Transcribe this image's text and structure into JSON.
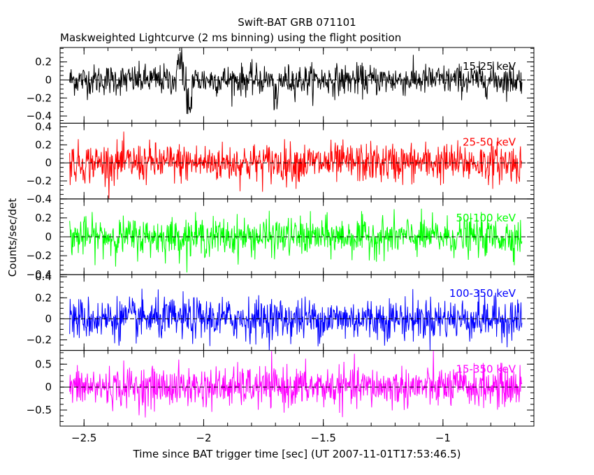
{
  "chart_data": {
    "type": "line",
    "title": "Swift-BAT GRB 071101",
    "subtitle": "Maskweighted Lightcurve (2 ms binning) using the flight position",
    "xlabel": "Time since BAT trigger time [sec] (UT 2007-11-01T17:53:46.5)",
    "ylabel": "Counts/sec/det",
    "xlim": [
      -2.6,
      -0.62
    ],
    "x_ticks": [
      -2.5,
      -2,
      -1.5,
      -1
    ],
    "x_tick_labels": [
      "−2.5",
      "−2",
      "−1.5",
      "−1"
    ],
    "x_data_range": [
      -2.56,
      -0.67
    ],
    "bin_width": 0.002,
    "panels": [
      {
        "name": "15-25 keV",
        "color": "#000000",
        "ylim": [
          -0.48,
          0.36
        ],
        "y_ticks": [
          -0.4,
          -0.2,
          0,
          0.2
        ],
        "y_tick_labels": [
          "−0.4",
          "−0.2",
          "0",
          "0.2"
        ],
        "noise_sigma": 0.085,
        "spikes": [
          {
            "x": -2.1,
            "amp": 0.22
          },
          {
            "x": -2.06,
            "amp": -0.3
          },
          {
            "x": -1.7,
            "amp": -0.25
          }
        ]
      },
      {
        "name": "25-50 keV",
        "color": "#ff0000",
        "ylim": [
          -0.4,
          0.44
        ],
        "y_ticks": [
          -0.4,
          -0.2,
          0,
          0.2,
          0.4
        ],
        "y_tick_labels": [
          "−0.4",
          "−0.2",
          "0",
          "0.2",
          "0.4"
        ],
        "noise_sigma": 0.11,
        "spikes": []
      },
      {
        "name": "50-100 keV",
        "color": "#00ff00",
        "ylim": [
          -0.4,
          0.4
        ],
        "y_ticks": [
          -0.4,
          -0.2,
          0,
          0.2
        ],
        "y_tick_labels": [
          "−0.4",
          "−0.2",
          "0",
          "0.2"
        ],
        "noise_sigma": 0.1,
        "spikes": []
      },
      {
        "name": "100-350 keV",
        "color": "#0000ff",
        "ylim": [
          -0.3,
          0.42
        ],
        "y_ticks": [
          -0.2,
          0,
          0.2,
          0.4
        ],
        "y_tick_labels": [
          "−0.2",
          "0",
          "0.2",
          "0.4"
        ],
        "noise_sigma": 0.1,
        "spikes": []
      },
      {
        "name": "15-350 keV",
        "color": "#ff00ff",
        "ylim": [
          -0.85,
          0.8
        ],
        "y_ticks": [
          -0.5,
          0,
          0.5
        ],
        "y_tick_labels": [
          "−0.5",
          "0",
          "0.5"
        ],
        "noise_sigma": 0.22,
        "spikes": []
      }
    ],
    "grid": false,
    "legend": "panel labels at top-right of each panel"
  }
}
